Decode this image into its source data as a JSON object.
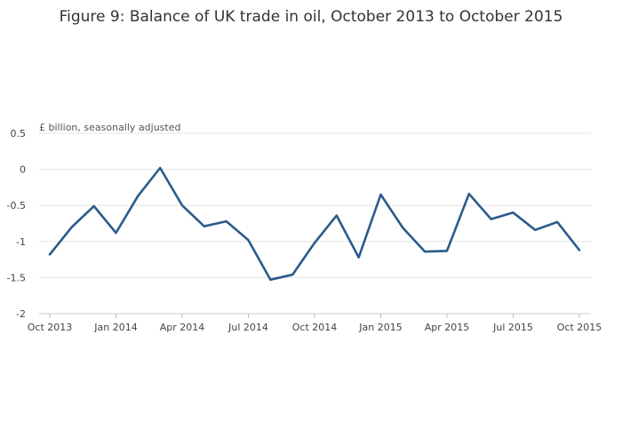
{
  "chart_data": {
    "type": "line",
    "title": "Figure 9: Balance of UK trade in oil, October 2013 to October 2015",
    "ylabel": "£ billion, seasonally adjusted",
    "xlabel": "",
    "ylim": [
      -2,
      0.5
    ],
    "y_ticks": [
      "0.5",
      "0",
      "-0.5",
      "-1",
      "-1.5",
      "-2"
    ],
    "y_tick_values": [
      0.5,
      0,
      -0.5,
      -1,
      -1.5,
      -2
    ],
    "x_ticks": [
      "Oct 2013",
      "Jan 2014",
      "Apr 2014",
      "Jul 2014",
      "Oct 2014",
      "Jan 2015",
      "Apr 2015",
      "Jul 2015",
      "Oct 2015"
    ],
    "grid": true,
    "line_color": "#2a5b8c",
    "x": [
      "Oct 2013",
      "Nov 2013",
      "Dec 2013",
      "Jan 2014",
      "Feb 2014",
      "Mar 2014",
      "Apr 2014",
      "May 2014",
      "Jun 2014",
      "Jul 2014",
      "Aug 2014",
      "Sep 2014",
      "Oct 2014",
      "Nov 2014",
      "Dec 2014",
      "Jan 2015",
      "Feb 2015",
      "Mar 2015",
      "Apr 2015",
      "May 2015",
      "Jun 2015",
      "Jul 2015",
      "Aug 2015",
      "Sep 2015",
      "Oct 2015"
    ],
    "series": [
      {
        "values": [
          -1.18,
          -0.8,
          -0.51,
          -0.88,
          -0.37,
          0.02,
          -0.5,
          -0.79,
          -0.72,
          -0.98,
          -1.53,
          -1.46,
          -1.02,
          -0.64,
          -1.22,
          -0.35,
          -0.81,
          -1.14,
          -1.13,
          -0.34,
          -0.69,
          -0.6,
          -0.84,
          -0.73,
          -1.12
        ]
      }
    ]
  }
}
